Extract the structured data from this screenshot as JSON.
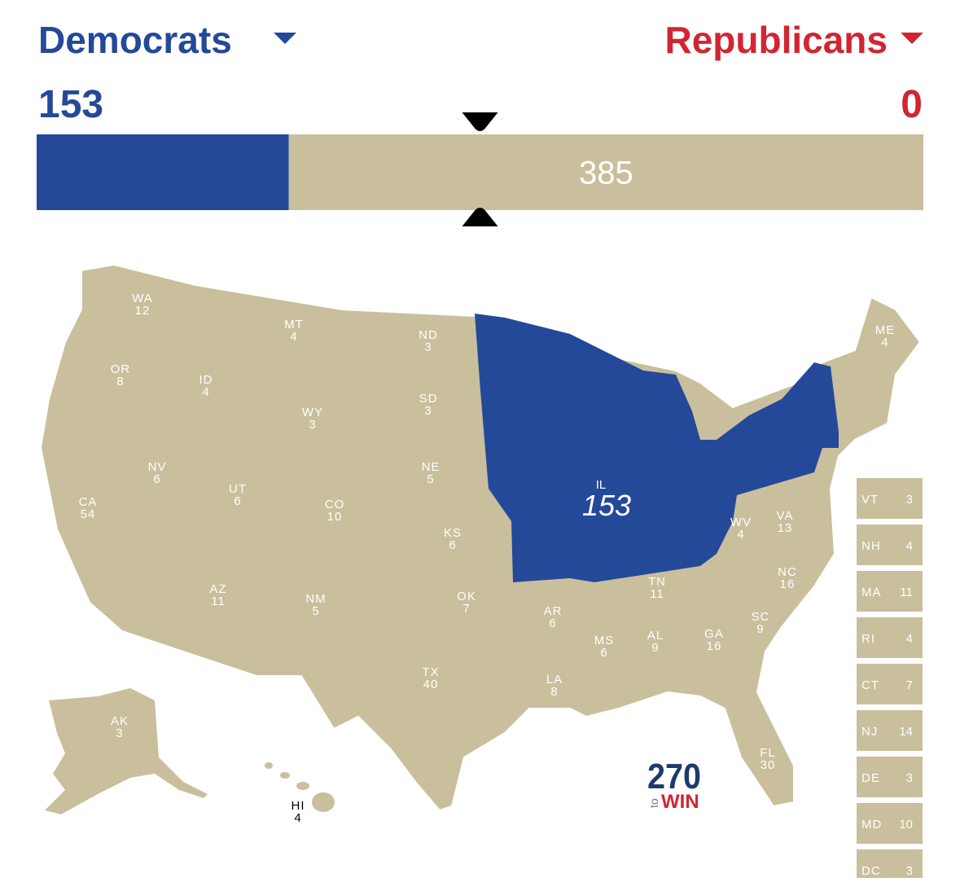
{
  "header": {
    "dem_label": "Democrats",
    "rep_label": "Republicans",
    "dem_votes": 153,
    "rep_votes": 0,
    "undecided_votes": 385
  },
  "colors": {
    "dem": "#244999",
    "rep": "#d22532",
    "tossup": "#c9bf9c"
  },
  "map": {
    "states": [
      {
        "abbr": "WA",
        "votes": 12
      },
      {
        "abbr": "OR",
        "votes": 8
      },
      {
        "abbr": "CA",
        "votes": 54
      },
      {
        "abbr": "NV",
        "votes": 6
      },
      {
        "abbr": "ID",
        "votes": 4
      },
      {
        "abbr": "MT",
        "votes": 4
      },
      {
        "abbr": "WY",
        "votes": 3
      },
      {
        "abbr": "UT",
        "votes": 6
      },
      {
        "abbr": "AZ",
        "votes": 11
      },
      {
        "abbr": "CO",
        "votes": 10
      },
      {
        "abbr": "NM",
        "votes": 5
      },
      {
        "abbr": "ND",
        "votes": 3
      },
      {
        "abbr": "SD",
        "votes": 3
      },
      {
        "abbr": "NE",
        "votes": 5
      },
      {
        "abbr": "KS",
        "votes": 6
      },
      {
        "abbr": "OK",
        "votes": 7
      },
      {
        "abbr": "TX",
        "votes": 40
      },
      {
        "abbr": "AR",
        "votes": 6
      },
      {
        "abbr": "LA",
        "votes": 8
      },
      {
        "abbr": "MS",
        "votes": 6
      },
      {
        "abbr": "AL",
        "votes": 9
      },
      {
        "abbr": "TN",
        "votes": 11
      },
      {
        "abbr": "GA",
        "votes": 16
      },
      {
        "abbr": "SC",
        "votes": 9
      },
      {
        "abbr": "NC",
        "votes": 16
      },
      {
        "abbr": "FL",
        "votes": 30
      },
      {
        "abbr": "VA",
        "votes": 13
      },
      {
        "abbr": "WV",
        "votes": 4
      },
      {
        "abbr": "ME",
        "votes": 4
      },
      {
        "abbr": "AK",
        "votes": 3
      },
      {
        "abbr": "HI",
        "votes": 4
      }
    ],
    "highlight": {
      "label": "IL",
      "total": 153
    },
    "small_states": [
      {
        "abbr": "VT",
        "votes": 3
      },
      {
        "abbr": "NH",
        "votes": 4
      },
      {
        "abbr": "MA",
        "votes": 11
      },
      {
        "abbr": "RI",
        "votes": 4
      },
      {
        "abbr": "CT",
        "votes": 7
      },
      {
        "abbr": "NJ",
        "votes": 14
      },
      {
        "abbr": "DE",
        "votes": 3
      },
      {
        "abbr": "MD",
        "votes": 10
      },
      {
        "abbr": "DC",
        "votes": 3
      }
    ]
  },
  "logo": {
    "number": "270",
    "small": "to",
    "word": "WIN"
  }
}
